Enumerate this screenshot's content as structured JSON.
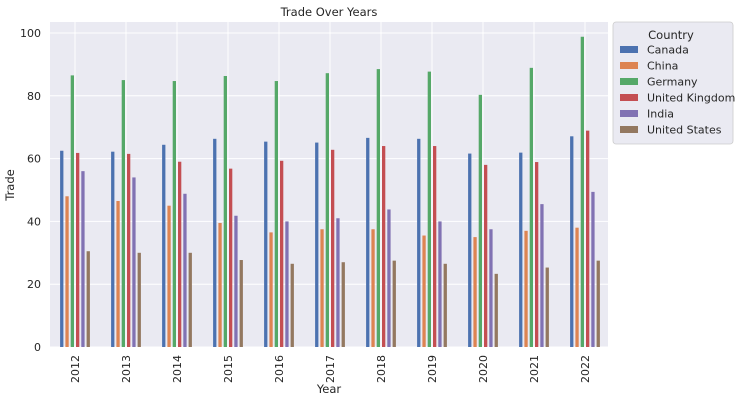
{
  "chart_data": {
    "type": "bar",
    "title": "Trade Over Years",
    "xlabel": "Year",
    "ylabel": "Trade",
    "categories": [
      "2012",
      "2013",
      "2014",
      "2015",
      "2016",
      "2017",
      "2018",
      "2019",
      "2020",
      "2021",
      "2022"
    ],
    "ylim": [
      0,
      103.5
    ],
    "yticks": [
      "0",
      "20",
      "40",
      "60",
      "80",
      "100"
    ],
    "grid": true,
    "legend": {
      "title": "Country",
      "placement": "outside top-right"
    },
    "series": [
      {
        "name": "Canada",
        "color": "#4c72b0",
        "values": [
          62.5,
          62.2,
          64.4,
          66.3,
          65.4,
          65.1,
          66.6,
          66.3,
          61.6,
          61.9,
          67.1
        ]
      },
      {
        "name": "China",
        "color": "#dd8452",
        "values": [
          48.0,
          46.5,
          45.0,
          39.5,
          36.5,
          37.5,
          37.5,
          35.5,
          35.0,
          37.0,
          38.0
        ]
      },
      {
        "name": "Germany",
        "color": "#55a868",
        "values": [
          86.5,
          85.0,
          84.7,
          86.3,
          84.7,
          87.2,
          88.5,
          87.7,
          80.3,
          88.9,
          98.8
        ]
      },
      {
        "name": "United Kingdom",
        "color": "#c44e52",
        "values": [
          61.8,
          61.5,
          59.0,
          56.8,
          59.3,
          62.8,
          64.0,
          64.0,
          58.0,
          58.9,
          68.9
        ]
      },
      {
        "name": "India",
        "color": "#8172b3",
        "values": [
          56.0,
          54.0,
          48.8,
          41.8,
          40.0,
          41.0,
          43.8,
          40.0,
          37.5,
          45.5,
          49.4
        ]
      },
      {
        "name": "United States",
        "color": "#937860",
        "values": [
          30.5,
          30.0,
          30.0,
          27.7,
          26.5,
          27.0,
          27.5,
          26.5,
          23.3,
          25.3,
          27.5
        ]
      }
    ]
  }
}
